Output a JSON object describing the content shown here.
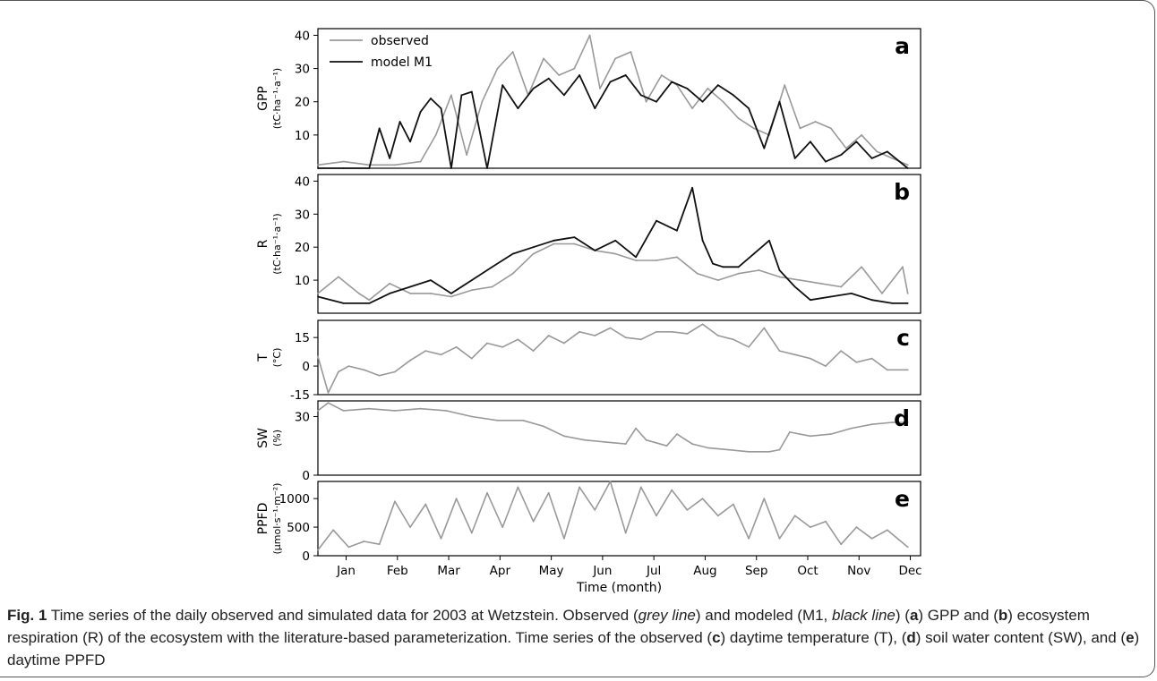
{
  "figure": {
    "caption": {
      "fig_label": "Fig. 1",
      "text_1": " Time series of the daily observed and simulated data for 2003 at Wetzstein. Observed (",
      "grey_line": "grey line",
      "text_2": ") and modeled (M1, ",
      "black_line": "black line",
      "text_3": ") (",
      "a": "a",
      "text_4": ") GPP and (",
      "b": "b",
      "text_5": ") ecosystem respiration (R) of the ecosystem with the literature-based parameterization. Time series of the observed (",
      "c": "c",
      "text_6": ") daytime temperature (T), (",
      "d": "d",
      "text_7": ") soil water content (SW), and (",
      "e": "e",
      "text_8": ") daytime PPFD"
    },
    "xlabel": "Time (month)",
    "legend": {
      "observed": "observed",
      "model": "model M1"
    }
  },
  "colors": {
    "observed": "#999999",
    "model": "#111111",
    "axes": "#000000"
  },
  "chart_data": [
    {
      "panel": "a",
      "type": "line",
      "ylabel": "GPP",
      "ylabel_units": "(tC·ha⁻¹·a⁻¹)",
      "ylim": [
        0,
        42
      ],
      "yticks": [
        10,
        20,
        30,
        40
      ],
      "x_unit": "month (2003)",
      "x_ticks": [
        "Jan",
        "Feb",
        "Mar",
        "Apr",
        "May",
        "Jun",
        "Jul",
        "Aug",
        "Sep",
        "Oct",
        "Nov",
        "Dec"
      ],
      "series": [
        {
          "name": "observed",
          "x": [
            0.0,
            0.5,
            1.0,
            1.5,
            2.0,
            2.3,
            2.6,
            2.9,
            3.2,
            3.5,
            3.8,
            4.1,
            4.4,
            4.7,
            5.0,
            5.3,
            5.5,
            5.8,
            6.1,
            6.4,
            6.7,
            7.0,
            7.3,
            7.6,
            7.9,
            8.2,
            8.5,
            8.8,
            9.1,
            9.4,
            9.7,
            10.0,
            10.3,
            10.6,
            10.9,
            11.2,
            11.5
          ],
          "y": [
            1,
            2,
            1,
            1,
            2,
            10,
            22,
            4,
            20,
            30,
            35,
            22,
            33,
            28,
            30,
            40,
            24,
            33,
            35,
            20,
            28,
            25,
            18,
            24,
            20,
            15,
            12,
            10,
            25,
            12,
            14,
            12,
            6,
            10,
            5,
            3,
            1
          ]
        },
        {
          "name": "model M1",
          "x": [
            0.0,
            0.5,
            1.0,
            1.2,
            1.4,
            1.6,
            1.8,
            2.0,
            2.2,
            2.4,
            2.6,
            2.8,
            3.0,
            3.3,
            3.6,
            3.9,
            4.2,
            4.5,
            4.8,
            5.1,
            5.4,
            5.7,
            6.0,
            6.3,
            6.6,
            6.9,
            7.2,
            7.5,
            7.8,
            8.1,
            8.4,
            8.7,
            9.0,
            9.3,
            9.6,
            9.9,
            10.2,
            10.5,
            10.8,
            11.1,
            11.5
          ],
          "y": [
            0,
            0,
            0,
            12,
            3,
            14,
            8,
            17,
            21,
            18,
            0,
            22,
            23,
            0,
            25,
            18,
            24,
            27,
            22,
            28,
            18,
            26,
            28,
            22,
            20,
            26,
            24,
            20,
            25,
            22,
            18,
            6,
            20,
            3,
            8,
            2,
            4,
            8,
            3,
            5,
            0
          ]
        }
      ]
    },
    {
      "panel": "b",
      "type": "line",
      "ylabel": "R",
      "ylabel_units": "(tC·ha⁻¹·a⁻¹)",
      "ylim": [
        0,
        42
      ],
      "yticks": [
        10,
        20,
        30,
        40
      ],
      "series": [
        {
          "name": "observed",
          "x": [
            0.0,
            0.4,
            0.8,
            1.0,
            1.4,
            1.8,
            2.2,
            2.6,
            3.0,
            3.4,
            3.8,
            4.2,
            4.6,
            5.0,
            5.4,
            5.8,
            6.2,
            6.6,
            7.0,
            7.4,
            7.8,
            8.2,
            8.6,
            9.0,
            9.4,
            9.8,
            10.2,
            10.6,
            11.0,
            11.4,
            11.5
          ],
          "y": [
            6,
            11,
            6,
            4,
            9,
            6,
            6,
            5,
            7,
            8,
            12,
            18,
            21,
            21,
            19,
            18,
            16,
            16,
            17,
            12,
            10,
            12,
            13,
            11,
            10,
            9,
            8,
            14,
            6,
            14,
            6
          ]
        },
        {
          "name": "model M1",
          "x": [
            0.0,
            0.5,
            1.0,
            1.4,
            1.8,
            2.2,
            2.6,
            3.0,
            3.4,
            3.8,
            4.2,
            4.6,
            5.0,
            5.4,
            5.8,
            6.2,
            6.6,
            7.0,
            7.3,
            7.5,
            7.7,
            7.9,
            8.2,
            8.5,
            8.8,
            9.0,
            9.3,
            9.6,
            10.0,
            10.4,
            10.8,
            11.2,
            11.5
          ],
          "y": [
            5,
            3,
            3,
            6,
            8,
            10,
            6,
            10,
            14,
            18,
            20,
            22,
            23,
            19,
            22,
            17,
            28,
            25,
            38,
            22,
            15,
            14,
            14,
            18,
            22,
            13,
            8,
            4,
            5,
            6,
            4,
            3,
            3
          ]
        }
      ]
    },
    {
      "panel": "c",
      "type": "line",
      "ylabel": "T",
      "ylabel_units": "(°C)",
      "ylim": [
        -15,
        24
      ],
      "yticks": [
        -15,
        0,
        15
      ],
      "series": [
        {
          "name": "observed",
          "x": [
            0.0,
            0.2,
            0.4,
            0.6,
            0.9,
            1.2,
            1.5,
            1.8,
            2.1,
            2.4,
            2.7,
            3.0,
            3.3,
            3.6,
            3.9,
            4.2,
            4.5,
            4.8,
            5.1,
            5.4,
            5.7,
            6.0,
            6.3,
            6.6,
            6.9,
            7.2,
            7.5,
            7.8,
            8.1,
            8.4,
            8.7,
            9.0,
            9.3,
            9.6,
            9.9,
            10.2,
            10.5,
            10.8,
            11.1,
            11.5
          ],
          "y": [
            5,
            -14,
            -3,
            0,
            -2,
            -5,
            -3,
            3,
            8,
            6,
            10,
            4,
            12,
            10,
            14,
            8,
            16,
            12,
            18,
            16,
            20,
            15,
            14,
            18,
            18,
            17,
            22,
            16,
            14,
            10,
            20,
            8,
            6,
            4,
            0,
            8,
            2,
            4,
            -2,
            -2
          ]
        }
      ]
    },
    {
      "panel": "d",
      "type": "line",
      "ylabel": "SW",
      "ylabel_units": "(%)",
      "ylim": [
        0,
        38
      ],
      "yticks": [
        0,
        30
      ],
      "series": [
        {
          "name": "observed",
          "x": [
            0.0,
            0.2,
            0.5,
            1.0,
            1.5,
            2.0,
            2.5,
            3.0,
            3.5,
            4.0,
            4.4,
            4.8,
            5.2,
            5.6,
            6.0,
            6.2,
            6.4,
            6.8,
            7.0,
            7.3,
            7.6,
            8.0,
            8.4,
            8.8,
            9.0,
            9.2,
            9.6,
            10.0,
            10.4,
            10.8,
            11.2,
            11.5
          ],
          "y": [
            33,
            37,
            33,
            34,
            33,
            34,
            33,
            30,
            28,
            28,
            25,
            20,
            18,
            17,
            16,
            24,
            18,
            15,
            21,
            16,
            14,
            13,
            12,
            12,
            13,
            22,
            20,
            21,
            24,
            26,
            27,
            27
          ]
        }
      ]
    },
    {
      "panel": "e",
      "type": "line",
      "ylabel": "PPFD",
      "ylabel_units": "(μmol·s⁻¹·m⁻²)",
      "ylim": [
        0,
        1300
      ],
      "yticks": [
        0,
        500,
        1000
      ],
      "series": [
        {
          "name": "observed",
          "x": [
            0.0,
            0.3,
            0.6,
            0.9,
            1.2,
            1.5,
            1.8,
            2.1,
            2.4,
            2.7,
            3.0,
            3.3,
            3.6,
            3.9,
            4.2,
            4.5,
            4.8,
            5.1,
            5.4,
            5.7,
            6.0,
            6.3,
            6.6,
            6.9,
            7.2,
            7.5,
            7.8,
            8.1,
            8.4,
            8.7,
            9.0,
            9.3,
            9.6,
            9.9,
            10.2,
            10.5,
            10.8,
            11.1,
            11.5
          ],
          "y": [
            100,
            450,
            150,
            250,
            200,
            950,
            500,
            900,
            300,
            1000,
            400,
            1100,
            500,
            1200,
            600,
            1100,
            300,
            1200,
            800,
            1300,
            400,
            1200,
            700,
            1150,
            800,
            1000,
            700,
            900,
            300,
            1000,
            300,
            700,
            500,
            600,
            200,
            500,
            300,
            450,
            150
          ]
        }
      ]
    }
  ]
}
